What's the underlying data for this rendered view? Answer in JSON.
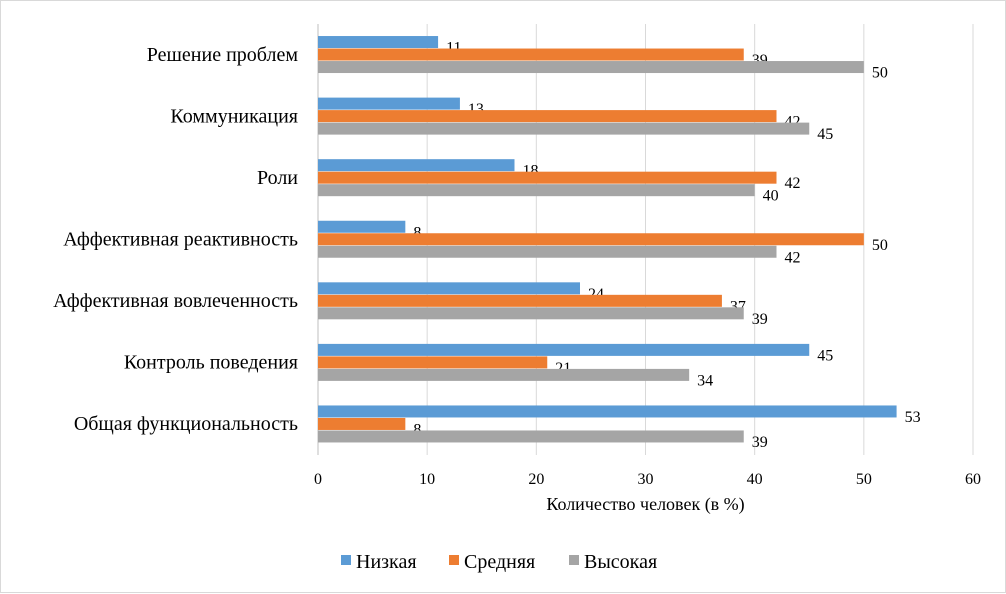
{
  "chart_data": {
    "type": "bar",
    "orientation": "horizontal",
    "title": "",
    "xlabel": "Количество человек (в %)",
    "ylabel": "",
    "xlim": [
      0,
      60
    ],
    "xticks": [
      0,
      10,
      20,
      30,
      40,
      50,
      60
    ],
    "grid": "vertical",
    "legend": "bottom",
    "categories": [
      "Решение проблем",
      "Коммуникация",
      "Роли",
      "Аффективная реактивность",
      "Аффективная вовлеченность",
      "Контроль поведения",
      "Общая функциональность"
    ],
    "series": [
      {
        "name": "Низкая",
        "color": "#5b9bd5",
        "values": [
          11,
          13,
          18,
          8,
          24,
          45,
          53
        ]
      },
      {
        "name": "Средняя",
        "color": "#ed7d31",
        "values": [
          39,
          42,
          42,
          50,
          37,
          21,
          8
        ]
      },
      {
        "name": "Высокая",
        "color": "#a5a5a5",
        "values": [
          50,
          45,
          40,
          42,
          39,
          34,
          39
        ]
      }
    ]
  }
}
